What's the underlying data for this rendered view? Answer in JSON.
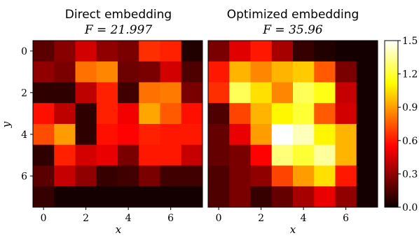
{
  "chart_data": [
    {
      "type": "heatmap",
      "title_line1": "Direct embedding",
      "title_line2": "F = 21.997",
      "xlabel": "x",
      "ylabel": "y",
      "xticks": [
        0,
        2,
        4,
        6
      ],
      "yticks": [
        0,
        2,
        4,
        6
      ],
      "values": [
        [
          0.18,
          0.28,
          0.45,
          0.3,
          0.25,
          0.65,
          0.62,
          0.05
        ],
        [
          0.3,
          0.25,
          0.8,
          0.85,
          0.22,
          0.25,
          0.45,
          0.15
        ],
        [
          0.08,
          0.08,
          0.4,
          0.62,
          0.12,
          0.8,
          0.82,
          0.25
        ],
        [
          0.58,
          0.4,
          0.08,
          0.62,
          0.52,
          0.92,
          0.75,
          0.58
        ],
        [
          0.72,
          0.9,
          0.08,
          0.58,
          0.55,
          0.62,
          0.6,
          0.6
        ],
        [
          0.08,
          0.62,
          0.45,
          0.5,
          0.25,
          0.6,
          0.6,
          0.42
        ],
        [
          0.18,
          0.42,
          0.3,
          0.1,
          0.12,
          0.25,
          0.12,
          0.12
        ],
        [
          0.1,
          0.02,
          0.02,
          0.02,
          0.02,
          0.02,
          0.02,
          0.02
        ]
      ]
    },
    {
      "type": "heatmap",
      "title_line1": "Optimized embedding",
      "title_line2": "F = 35.96",
      "xlabel": "x",
      "xticks": [
        0,
        2,
        4,
        6
      ],
      "values": [
        [
          0.25,
          0.48,
          0.6,
          0.35,
          0.1,
          0.05,
          0.02,
          0.02
        ],
        [
          0.6,
          0.95,
          0.85,
          0.95,
          1.0,
          0.75,
          0.25,
          0.02
        ],
        [
          0.65,
          1.25,
          1.05,
          0.85,
          1.25,
          1.15,
          0.42,
          0.02
        ],
        [
          0.15,
          0.7,
          0.95,
          1.1,
          1.2,
          0.75,
          0.45,
          0.02
        ],
        [
          0.2,
          0.5,
          0.9,
          1.5,
          1.4,
          1.1,
          0.95,
          0.02
        ],
        [
          0.2,
          0.25,
          0.55,
          1.3,
          1.2,
          1.35,
          0.95,
          0.02
        ],
        [
          0.15,
          0.25,
          0.3,
          0.7,
          0.9,
          1.05,
          0.6,
          0.02
        ],
        [
          0.15,
          0.25,
          0.1,
          0.2,
          0.35,
          0.5,
          0.3,
          0.02
        ]
      ]
    }
  ],
  "colorbar": {
    "colormap": "hot",
    "range": [
      0.0,
      1.5
    ],
    "ticks": [
      "0.0",
      "0.3",
      "0.6",
      "0.9",
      "1.2",
      "1.5"
    ],
    "tick_values": [
      0.0,
      0.3,
      0.6,
      0.9,
      1.2,
      1.5
    ]
  }
}
